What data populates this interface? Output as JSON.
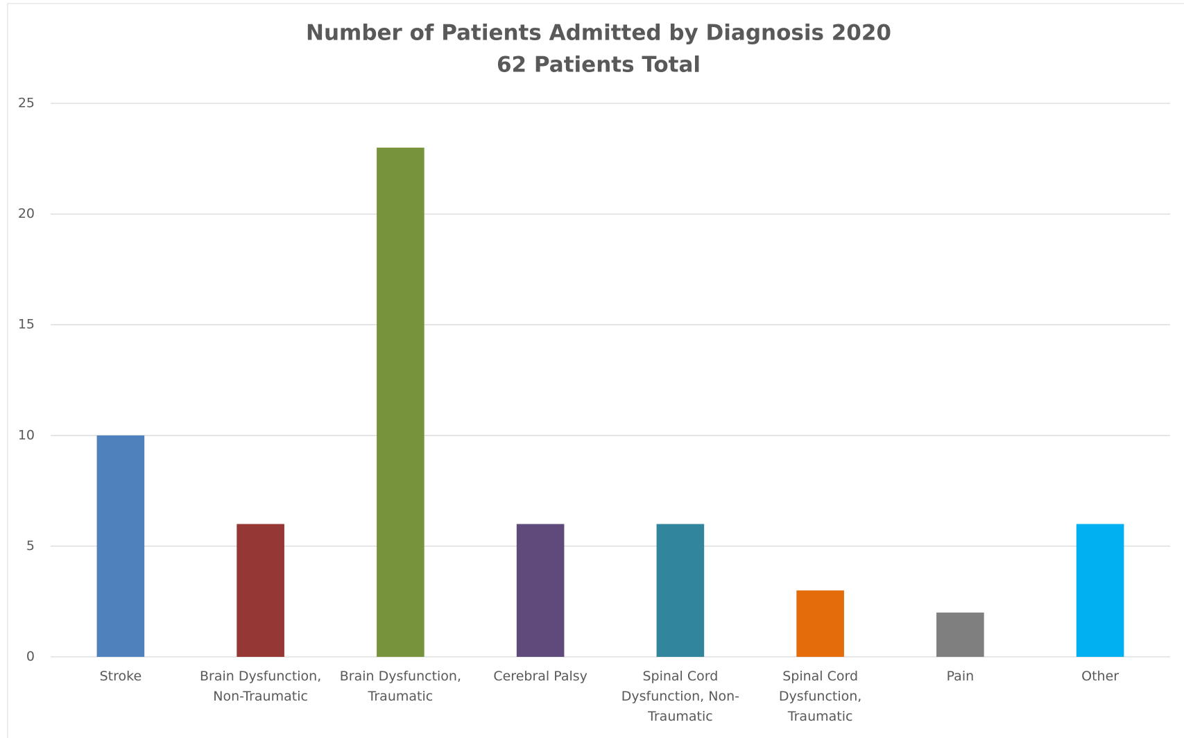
{
  "chart_data": {
    "type": "bar",
    "title": "Number of Patients Admitted by Diagnosis 2020",
    "subtitle": "62 Patients Total",
    "categories": [
      "Stroke",
      "Brain Dysfunction, Non-Traumatic",
      "Brain Dysfunction, Traumatic",
      "Cerebral Palsy",
      "Spinal Cord Dysfunction, Non-Traumatic",
      "Spinal Cord Dysfunction, Traumatic",
      "Pain",
      "Other"
    ],
    "values": [
      10,
      6,
      23,
      6,
      6,
      3,
      2,
      6
    ],
    "colors": [
      "#4f81bd",
      "#953735",
      "#77933c",
      "#604a7b",
      "#31859c",
      "#e46c0a",
      "#7f7f7f",
      "#00b0f0"
    ],
    "ylim": [
      0,
      25
    ],
    "yticks": [
      0,
      5,
      10,
      15,
      20,
      25
    ],
    "grid": true
  }
}
